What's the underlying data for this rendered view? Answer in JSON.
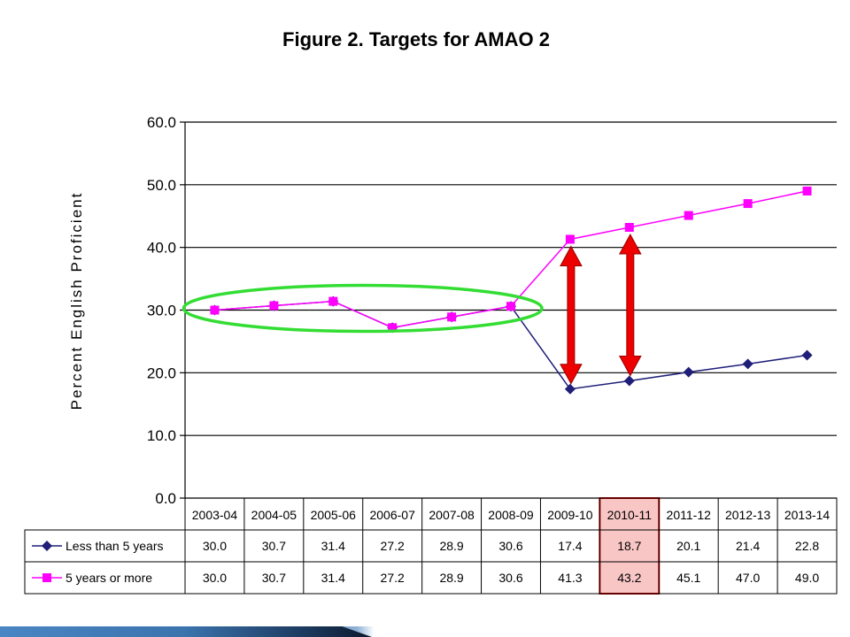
{
  "chart_data": {
    "type": "line",
    "title": "Figure 2.  Targets for AMAO 2",
    "ylabel": "Percent English Proficient",
    "xlabel": "",
    "ylim": [
      0,
      60
    ],
    "yticks": [
      "0.0",
      "10.0",
      "20.0",
      "30.0",
      "40.0",
      "50.0",
      "60.0"
    ],
    "grid": true,
    "legend_placement": "bottom-table",
    "categories": [
      "2003-04",
      "2004-05",
      "2005-06",
      "2006-07",
      "2007-08",
      "2008-09",
      "2009-10",
      "2010-11",
      "2011-12",
      "2012-13",
      "2013-14"
    ],
    "series": [
      {
        "name": "Less than 5 years",
        "values": [
          30.0,
          30.7,
          31.4,
          27.2,
          28.9,
          30.6,
          17.4,
          18.7,
          20.1,
          21.4,
          22.8
        ],
        "value_labels": [
          "30.0",
          "30.7",
          "31.4",
          "27.2",
          "28.9",
          "30.6",
          "17.4",
          "18.7",
          "20.1",
          "21.4",
          "22.8"
        ],
        "color": "#1f1f7a",
        "marker": "diamond"
      },
      {
        "name": "5 years or more",
        "values": [
          30.0,
          30.7,
          31.4,
          27.2,
          28.9,
          30.6,
          41.3,
          43.2,
          45.1,
          47.0,
          49.0
        ],
        "value_labels": [
          "30.0",
          "30.7",
          "31.4",
          "27.2",
          "28.9",
          "30.6",
          "41.3",
          "43.2",
          "45.1",
          "47.0",
          "49.0"
        ],
        "color": "#ff00ff",
        "marker": "square"
      }
    ],
    "highlighted_category": "2010-11",
    "highlight_color": "#f9c6c6",
    "annotations": {
      "ellipse_color": "#33dd33",
      "ellipse_span": [
        "2003-04",
        "2008-09"
      ],
      "ellipse_center_y": 30,
      "arrow_color": "#ee0000",
      "arrows": [
        {
          "category": "2009-10",
          "from": 17.4,
          "to": 41.3
        },
        {
          "category": "2010-11",
          "from": 18.7,
          "to": 43.2
        }
      ]
    }
  }
}
